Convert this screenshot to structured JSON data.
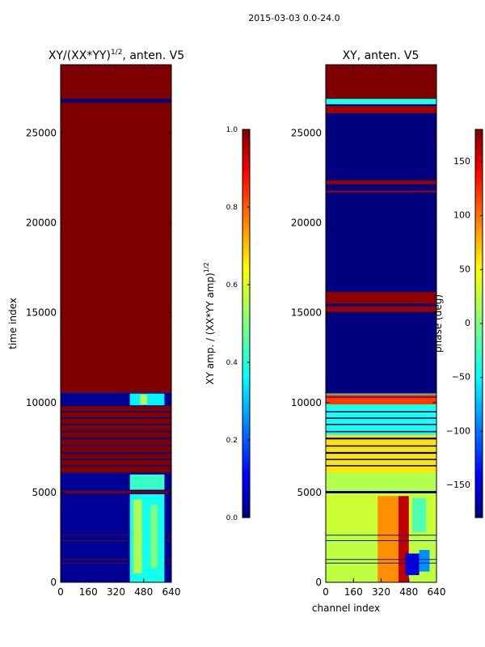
{
  "figure_title": "2015-03-03 0.0-24.0",
  "colormap": {
    "name": "jet",
    "stops": [
      "#00007f",
      "#0000ff",
      "#00ffff",
      "#7fff7f",
      "#ffff00",
      "#ff0000",
      "#7f0000"
    ]
  },
  "chart_data": [
    {
      "type": "heatmap",
      "title_main": "XY/(XX*YY)",
      "title_exponent": "1/2",
      "title_suffix": ", anten. V5",
      "xlabel": "",
      "ylabel": "time index",
      "xlim": [
        0,
        640
      ],
      "ylim": [
        0,
        28800
      ],
      "xticks": [
        0,
        160,
        320,
        480,
        640
      ],
      "yticks": [
        0,
        5000,
        10000,
        15000,
        20000,
        25000
      ],
      "colorbar": {
        "label_main": "XY amp. / (XX*YY amp)",
        "label_exponent": "1/2",
        "vmin": 0.0,
        "vmax": 1.0,
        "ticks": [
          0.0,
          0.2,
          0.4,
          0.6,
          0.8,
          1.0
        ],
        "tick_labels": [
          "0.0",
          "0.2",
          "0.4",
          "0.6",
          "0.8",
          "1.0"
        ]
      },
      "regions": [
        {
          "x": [
            0,
            640
          ],
          "y": [
            10550,
            28800
          ],
          "value": 1.0
        },
        {
          "x": [
            0,
            640
          ],
          "y": [
            26700,
            26900
          ],
          "value": 0.0
        },
        {
          "x": [
            0,
            640
          ],
          "y": [
            0,
            10550
          ],
          "value": 0.02
        },
        {
          "x": [
            0,
            640
          ],
          "y": [
            6100,
            9800
          ],
          "value": 1.0
        },
        {
          "x": [
            0,
            640
          ],
          "y": [
            10280,
            10330
          ],
          "value": 0.0
        },
        {
          "x": [
            0,
            640
          ],
          "y": [
            9450,
            9520
          ],
          "value": 0.0
        },
        {
          "x": [
            0,
            640
          ],
          "y": [
            9100,
            9170
          ],
          "value": 0.0
        },
        {
          "x": [
            0,
            640
          ],
          "y": [
            8750,
            8820
          ],
          "value": 0.0
        },
        {
          "x": [
            0,
            640
          ],
          "y": [
            8350,
            8420
          ],
          "value": 0.0
        },
        {
          "x": [
            0,
            640
          ],
          "y": [
            7950,
            8050
          ],
          "value": 0.0
        },
        {
          "x": [
            0,
            640
          ],
          "y": [
            7550,
            7620
          ],
          "value": 0.0
        },
        {
          "x": [
            0,
            640
          ],
          "y": [
            7150,
            7250
          ],
          "value": 0.0
        },
        {
          "x": [
            0,
            640
          ],
          "y": [
            6800,
            6870
          ],
          "value": 0.0
        },
        {
          "x": [
            0,
            640
          ],
          "y": [
            6450,
            6520
          ],
          "value": 0.0
        },
        {
          "x": [
            0,
            640
          ],
          "y": [
            4950,
            5080
          ],
          "value": 1.0
        },
        {
          "x": [
            0,
            640
          ],
          "y": [
            2600,
            2640
          ],
          "value": 1.0
        },
        {
          "x": [
            0,
            640
          ],
          "y": [
            2300,
            2340
          ],
          "value": 1.0
        },
        {
          "x": [
            0,
            640
          ],
          "y": [
            1250,
            1290
          ],
          "value": 1.0
        },
        {
          "x": [
            0,
            640
          ],
          "y": [
            1050,
            1090
          ],
          "value": 1.0
        },
        {
          "x": [
            400,
            600
          ],
          "y": [
            0,
            4900
          ],
          "value": 0.38
        },
        {
          "x": [
            420,
            470
          ],
          "y": [
            500,
            4600
          ],
          "value": 0.55
        },
        {
          "x": [
            520,
            560
          ],
          "y": [
            800,
            4300
          ],
          "value": 0.5
        },
        {
          "x": [
            400,
            600
          ],
          "y": [
            5150,
            6000
          ],
          "value": 0.42
        },
        {
          "x": [
            400,
            600
          ],
          "y": [
            9850,
            10500
          ],
          "value": 0.35
        },
        {
          "x": [
            460,
            500
          ],
          "y": [
            9900,
            10450
          ],
          "value": 0.55
        }
      ]
    },
    {
      "type": "heatmap",
      "title_main": "XY, anten. V5",
      "xlabel": "channel index",
      "ylabel": "",
      "xlim": [
        0,
        640
      ],
      "ylim": [
        0,
        28800
      ],
      "xticks": [
        0,
        160,
        320,
        480,
        640
      ],
      "yticks": [
        0,
        5000,
        10000,
        15000,
        20000,
        25000
      ],
      "colorbar": {
        "label_main": "phase (deg)",
        "vmin": -180,
        "vmax": 180,
        "ticks": [
          -150,
          -100,
          -50,
          0,
          50,
          100,
          150
        ],
        "tick_labels": [
          "−150",
          "−100",
          "−50",
          "0",
          "50",
          "100",
          "150"
        ]
      },
      "regions": [
        {
          "x": [
            0,
            640
          ],
          "y": [
            0,
            28800
          ],
          "value": -180
        },
        {
          "x": [
            0,
            640
          ],
          "y": [
            26900,
            28800
          ],
          "value": 180
        },
        {
          "x": [
            0,
            640
          ],
          "y": [
            26600,
            26900
          ],
          "value": -40
        },
        {
          "x": [
            0,
            640
          ],
          "y": [
            26100,
            26500
          ],
          "value": 170
        },
        {
          "x": [
            0,
            640
          ],
          "y": [
            22150,
            22350
          ],
          "value": 170
        },
        {
          "x": [
            0,
            640
          ],
          "y": [
            21700,
            21800
          ],
          "value": 170
        },
        {
          "x": [
            0,
            640
          ],
          "y": [
            15500,
            16150
          ],
          "value": 175
        },
        {
          "x": [
            0,
            640
          ],
          "y": [
            15050,
            15350
          ],
          "value": 170
        },
        {
          "x": [
            0,
            640
          ],
          "y": [
            0,
            10500
          ],
          "value": 40
        },
        {
          "x": [
            0,
            640
          ],
          "y": [
            8200,
            10500
          ],
          "value": -40
        },
        {
          "x": [
            0,
            640
          ],
          "y": [
            6100,
            8200
          ],
          "value": 60
        },
        {
          "x": [
            0,
            640
          ],
          "y": [
            9900,
            10450
          ],
          "value": 120
        },
        {
          "x": [
            0,
            640
          ],
          "y": [
            5000,
            6100
          ],
          "value": 20
        },
        {
          "x": [
            0,
            640
          ],
          "y": [
            2800,
            5000
          ],
          "value": 30
        },
        {
          "x": [
            0,
            640
          ],
          "y": [
            0,
            2800
          ],
          "value": 25
        },
        {
          "x": [
            300,
            420
          ],
          "y": [
            0,
            4800
          ],
          "value": 90
        },
        {
          "x": [
            420,
            480
          ],
          "y": [
            0,
            4800
          ],
          "value": 160
        },
        {
          "x": [
            500,
            580
          ],
          "y": [
            2800,
            4700
          ],
          "value": -20
        },
        {
          "x": [
            460,
            540
          ],
          "y": [
            400,
            1600
          ],
          "value": -150
        },
        {
          "x": [
            540,
            600
          ],
          "y": [
            600,
            1800
          ],
          "value": -90
        },
        {
          "x": [
            0,
            640
          ],
          "y": [
            9450,
            9520
          ],
          "value": -180
        },
        {
          "x": [
            0,
            640
          ],
          "y": [
            9100,
            9170
          ],
          "value": -180
        },
        {
          "x": [
            0,
            640
          ],
          "y": [
            8750,
            8820
          ],
          "value": -180
        },
        {
          "x": [
            0,
            640
          ],
          "y": [
            8350,
            8420
          ],
          "value": -180
        },
        {
          "x": [
            0,
            640
          ],
          "y": [
            7950,
            8050
          ],
          "value": -180
        },
        {
          "x": [
            0,
            640
          ],
          "y": [
            7550,
            7620
          ],
          "value": -180
        },
        {
          "x": [
            0,
            640
          ],
          "y": [
            7150,
            7250
          ],
          "value": -180
        },
        {
          "x": [
            0,
            640
          ],
          "y": [
            6800,
            6870
          ],
          "value": -180
        },
        {
          "x": [
            0,
            640
          ],
          "y": [
            6450,
            6520
          ],
          "value": -180
        },
        {
          "x": [
            0,
            640
          ],
          "y": [
            10280,
            10330
          ],
          "value": -180
        },
        {
          "x": [
            0,
            640
          ],
          "y": [
            4950,
            5080
          ],
          "value": -180
        },
        {
          "x": [
            0,
            640
          ],
          "y": [
            2600,
            2640
          ],
          "value": -180
        },
        {
          "x": [
            0,
            640
          ],
          "y": [
            2300,
            2340
          ],
          "value": -180
        },
        {
          "x": [
            0,
            640
          ],
          "y": [
            1250,
            1290
          ],
          "value": -180
        },
        {
          "x": [
            0,
            640
          ],
          "y": [
            1050,
            1090
          ],
          "value": -180
        }
      ]
    }
  ]
}
